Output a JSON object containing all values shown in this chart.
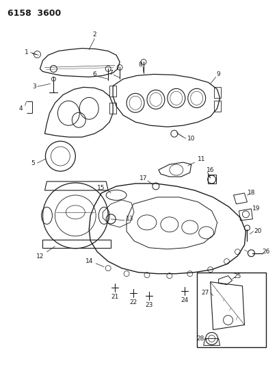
{
  "title": "6158  3600",
  "bg": "#ffffff",
  "fg": "#1a1a1a",
  "fig_w": 4.08,
  "fig_h": 5.33,
  "dpi": 100,
  "lw": 0.7,
  "xlim": [
    0,
    408
  ],
  "ylim": [
    0,
    533
  ]
}
